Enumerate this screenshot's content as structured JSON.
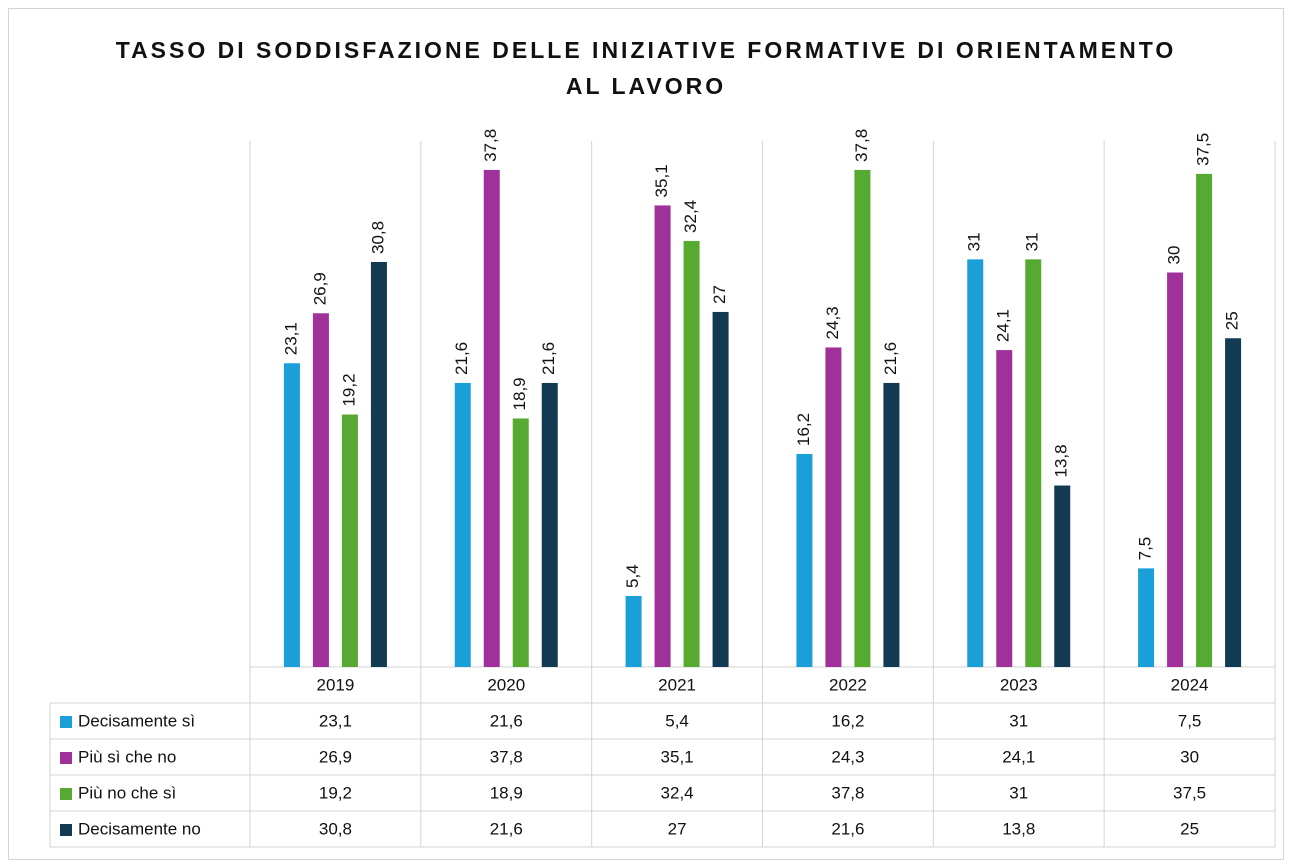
{
  "chart_data": {
    "type": "bar",
    "title": "TASSO DI SODDISFAZIONE DELLE INIZIATIVE FORMATIVE DI ORIENTAMENTO AL LAVORO",
    "categories": [
      "2019",
      "2020",
      "2021",
      "2022",
      "2023",
      "2024"
    ],
    "ylim": [
      0,
      40
    ],
    "data_table": true,
    "series": [
      {
        "name": "Decisamente sì",
        "color": "#1a9fd8",
        "values": [
          23.1,
          21.6,
          5.4,
          16.2,
          31,
          7.5
        ],
        "value_labels": [
          "23,1",
          "21,6",
          "5,4",
          "16,2",
          "31",
          "7,5"
        ]
      },
      {
        "name": "Più sì che no",
        "color": "#a0309a",
        "values": [
          26.9,
          37.8,
          35.1,
          24.3,
          24.1,
          30
        ],
        "value_labels": [
          "26,9",
          "37,8",
          "35,1",
          "24,3",
          "24,1",
          "30"
        ]
      },
      {
        "name": "Più no che sì",
        "color": "#57aa31",
        "values": [
          19.2,
          18.9,
          32.4,
          37.8,
          31,
          37.5
        ],
        "value_labels": [
          "19,2",
          "18,9",
          "32,4",
          "37,8",
          "31",
          "37,5"
        ]
      },
      {
        "name": "Decisamente no",
        "color": "#123a52",
        "values": [
          30.8,
          21.6,
          27,
          21.6,
          13.8,
          25
        ],
        "value_labels": [
          "30,8",
          "21,6",
          "27",
          "21,6",
          "13,8",
          "25"
        ]
      }
    ]
  }
}
